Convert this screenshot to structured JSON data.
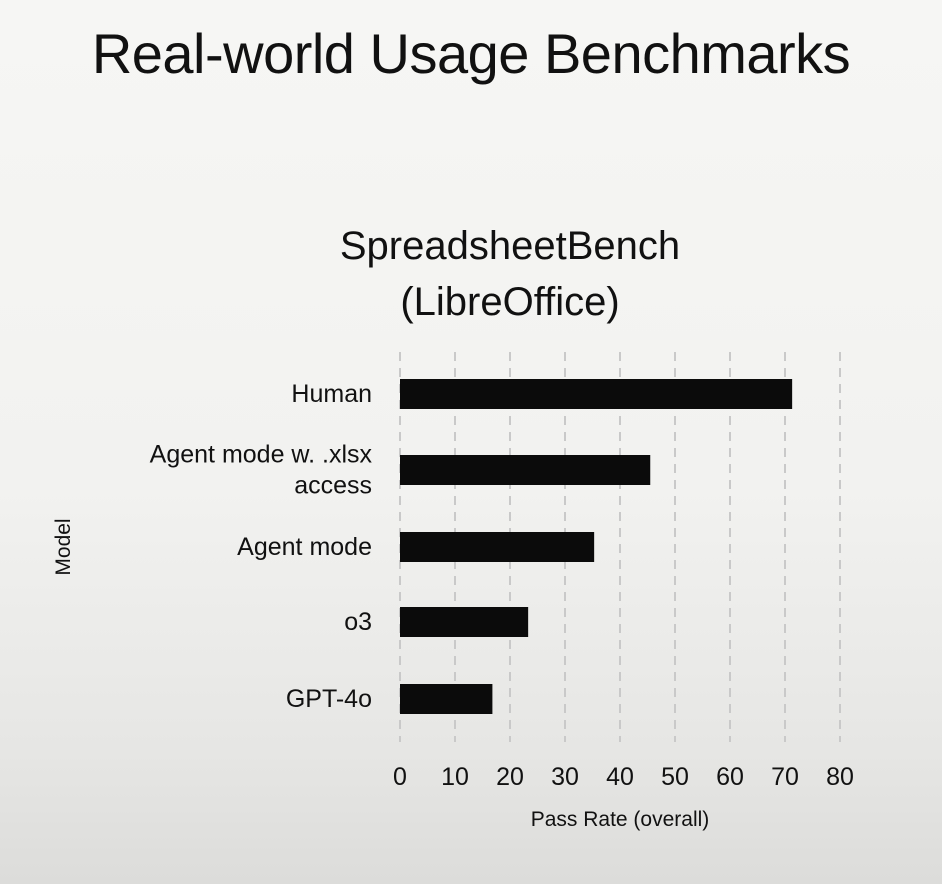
{
  "slide": {
    "title": "Real-world Usage Benchmarks"
  },
  "chart_data": {
    "type": "bar",
    "orientation": "horizontal",
    "title_lines": [
      "SpreadsheetBench",
      "(LibreOffice)"
    ],
    "categories": [
      [
        "Human"
      ],
      [
        "Agent mode w. .xlsx",
        "access"
      ],
      [
        "Agent mode"
      ],
      [
        "o3"
      ],
      [
        "GPT-4o"
      ]
    ],
    "values": [
      71.3,
      45.5,
      35.3,
      23.3,
      16.8
    ],
    "xlabel": "Pass Rate (overall)",
    "ylabel": "Model",
    "xlim": [
      0,
      80
    ],
    "xticks": [
      0,
      10,
      20,
      30,
      40,
      50,
      60,
      70,
      80
    ],
    "grid": true,
    "bar_color": "#0b0b0b",
    "grid_color": "#c9c9c9"
  }
}
